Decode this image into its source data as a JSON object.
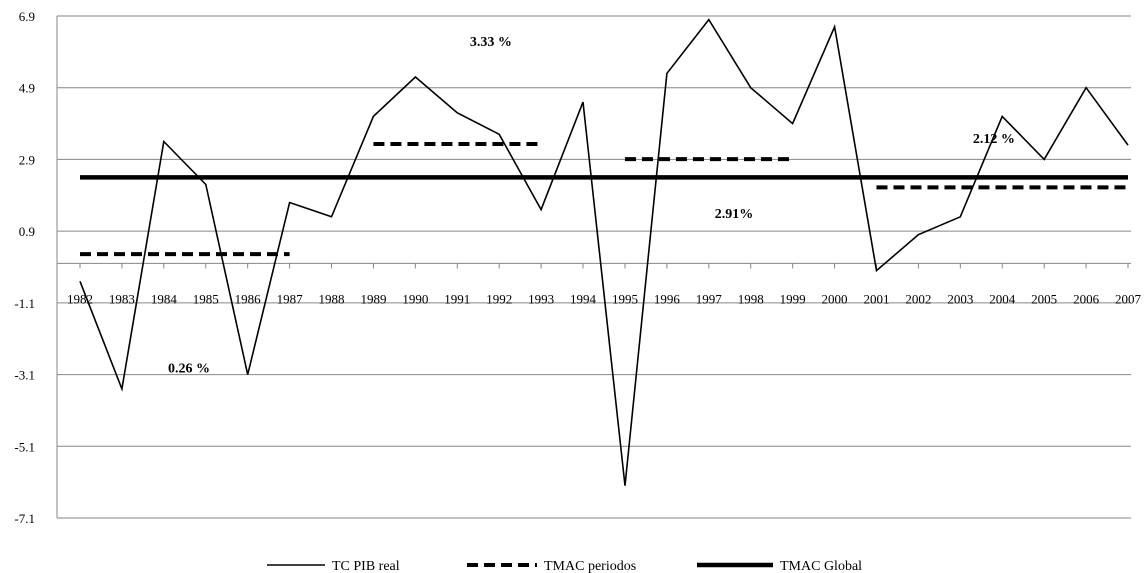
{
  "chart_data": {
    "type": "line",
    "title": "",
    "xlabel": "",
    "ylabel": "",
    "ylim": [
      -7.1,
      6.9
    ],
    "y_ticks": [
      "6.9",
      "4.9",
      "2.9",
      "0.9",
      "-1.1",
      "-3.1",
      "-5.1",
      "-7.1"
    ],
    "y_tick_values": [
      6.9,
      4.9,
      2.9,
      0.9,
      -1.1,
      -3.1,
      -5.1,
      -7.1
    ],
    "grid": true,
    "legend_position": "bottom",
    "categories": [
      "1982",
      "1983",
      "1984",
      "1985",
      "1986",
      "1987",
      "1988",
      "1989",
      "1990",
      "1991",
      "1992",
      "1993",
      "1994",
      "1995",
      "1996",
      "1997",
      "1998",
      "1999",
      "2000",
      "2001",
      "2002",
      "2003",
      "2004",
      "2005",
      "2006",
      "2007"
    ],
    "series": [
      {
        "name": "TC PIB real",
        "style": "thin",
        "values": [
          -0.5,
          -3.5,
          3.4,
          2.2,
          -3.1,
          1.7,
          1.3,
          4.1,
          5.2,
          4.2,
          3.6,
          1.5,
          4.5,
          -6.2,
          5.3,
          6.8,
          4.9,
          3.9,
          6.6,
          -0.2,
          0.8,
          1.3,
          4.1,
          2.9,
          4.9,
          3.3
        ]
      },
      {
        "name": "TMAC periodos",
        "style": "dashed",
        "segments": [
          {
            "from": "1982",
            "to": "1987",
            "value": 0.26
          },
          {
            "from": "1989",
            "to": "1993",
            "value": 3.33
          },
          {
            "from": "1995",
            "to": "1999",
            "value": 2.91
          },
          {
            "from": "2001",
            "to": "2007",
            "value": 2.12
          }
        ]
      },
      {
        "name": "TMAC Global",
        "style": "thick",
        "value": 2.4
      }
    ],
    "annotations": [
      {
        "text": "0.26 %",
        "x": "1984.6",
        "y": -2.9
      },
      {
        "text": "3.33 %",
        "x": "1991.8",
        "y": 6.2
      },
      {
        "text": "2.91%",
        "x": "1997.6",
        "y": 1.4
      },
      {
        "text": "2.12 %",
        "x": "2003.8",
        "y": 3.5
      }
    ]
  },
  "colors": {
    "line": "#000000",
    "grid": "#868686",
    "background": "#ffffff"
  }
}
